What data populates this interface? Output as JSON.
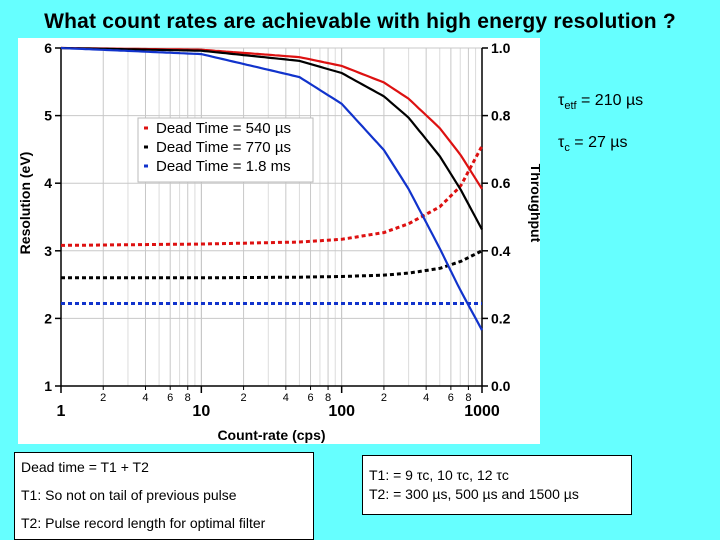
{
  "title": "What count rates are achievable with high energy resolution ?",
  "chart_data": {
    "type": "line",
    "xlabel": "Count-rate (cps)",
    "ylabel_left": "Resolution (eV)",
    "ylabel_right": "Throughput",
    "xscale": "log",
    "xlim": [
      1,
      1000
    ],
    "ylim_left": [
      1,
      6
    ],
    "ylim_right": [
      0.0,
      1.0
    ],
    "grid": true,
    "x_major_ticks": [
      {
        "v": 1,
        "label": "1"
      },
      {
        "v": 10,
        "label": "10"
      },
      {
        "v": 100,
        "label": "100"
      },
      {
        "v": 1000,
        "label": "1000"
      }
    ],
    "x_minor_ticks": [
      {
        "v": 2,
        "label": "2"
      },
      {
        "v": 4,
        "label": "4"
      },
      {
        "v": 6,
        "label": "6"
      },
      {
        "v": 8,
        "label": "8"
      },
      {
        "v": 20,
        "label": "2"
      },
      {
        "v": 40,
        "label": "4"
      },
      {
        "v": 60,
        "label": "6"
      },
      {
        "v": 80,
        "label": "8"
      },
      {
        "v": 200,
        "label": "2"
      },
      {
        "v": 400,
        "label": "4"
      },
      {
        "v": 600,
        "label": "6"
      },
      {
        "v": 800,
        "label": "8"
      }
    ],
    "y_left_ticks": [
      {
        "v": 1,
        "label": "1"
      },
      {
        "v": 2,
        "label": "2"
      },
      {
        "v": 3,
        "label": "3"
      },
      {
        "v": 4,
        "label": "4"
      },
      {
        "v": 5,
        "label": "5"
      },
      {
        "v": 6,
        "label": "6"
      }
    ],
    "y_right_ticks": [
      {
        "v": 0.0,
        "label": "0.0"
      },
      {
        "v": 0.2,
        "label": "0.2"
      },
      {
        "v": 0.4,
        "label": "0.4"
      },
      {
        "v": 0.6,
        "label": "0.6"
      },
      {
        "v": 0.8,
        "label": "0.8"
      },
      {
        "v": 1.0,
        "label": "1.0"
      }
    ],
    "legend_position": "upper-center",
    "series": [
      {
        "name": "Dead Time = 540 µs",
        "color": "#dd1111",
        "dead_time_s": 0.00054,
        "throughput": {
          "x": [
            1,
            10,
            50,
            100,
            200,
            300,
            500,
            700,
            1000
          ],
          "y": [
            1.0,
            0.995,
            0.973,
            0.947,
            0.898,
            0.85,
            0.763,
            0.685,
            0.583
          ]
        },
        "resolution": {
          "x": [
            1,
            10,
            50,
            100,
            200,
            300,
            500,
            700,
            1000
          ],
          "y": [
            3.08,
            3.1,
            3.13,
            3.17,
            3.27,
            3.4,
            3.65,
            3.95,
            4.55
          ]
        }
      },
      {
        "name": "Dead Time = 770 µs",
        "color": "#000000",
        "dead_time_s": 0.00077,
        "throughput": {
          "x": [
            1,
            10,
            50,
            100,
            200,
            300,
            500,
            700,
            1000
          ],
          "y": [
            1.0,
            0.992,
            0.962,
            0.926,
            0.857,
            0.794,
            0.68,
            0.583,
            0.463
          ]
        },
        "resolution": {
          "x": [
            1,
            10,
            50,
            100,
            200,
            300,
            500,
            700,
            1000
          ],
          "y": [
            2.6,
            2.6,
            2.61,
            2.62,
            2.64,
            2.67,
            2.74,
            2.84,
            3.0
          ]
        }
      },
      {
        "name": "Dead Time = 1.8 ms",
        "color": "#1133cc",
        "dead_time_s": 0.0018,
        "throughput": {
          "x": [
            1,
            10,
            50,
            100,
            200,
            300,
            500,
            700,
            1000
          ],
          "y": [
            1.0,
            0.982,
            0.914,
            0.835,
            0.698,
            0.583,
            0.407,
            0.284,
            0.165
          ]
        },
        "resolution": {
          "x": [
            1,
            1000
          ],
          "y": [
            2.22,
            2.22
          ]
        }
      }
    ]
  },
  "annotations": {
    "tau_etf": {
      "sym": "τ",
      "sub": "etf",
      "rest": " = 210 µs"
    },
    "tau_c": {
      "sym": "τ",
      "sub": "c",
      "rest": " = 27 µs"
    }
  },
  "dead_time_box": {
    "line1": "Dead time = T1 + T2",
    "line2": "T1: So not on tail of previous pulse",
    "line3": "T2: Pulse record length for optimal filter"
  },
  "t_box": {
    "line1": "T1: = 9 τc, 10 τc, 12 τc",
    "line2": "T2: = 300 µs, 500 µs and 1500 µs"
  }
}
